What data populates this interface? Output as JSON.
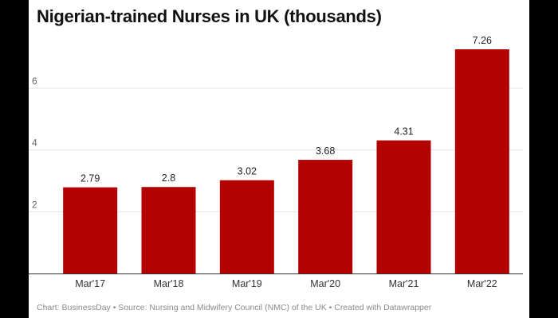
{
  "chart_data": {
    "type": "bar",
    "title": "Nigerian-trained Nurses in UK (thousands)",
    "categories": [
      "Mar'17",
      "Mar'18",
      "Mar'19",
      "Mar'20",
      "Mar'21",
      "Mar'22"
    ],
    "values": [
      2.79,
      2.8,
      3.02,
      3.68,
      4.31,
      7.26
    ],
    "value_labels": [
      "2.79",
      "2.8",
      "3.02",
      "3.68",
      "4.31",
      "7.26"
    ],
    "yticks": [
      2,
      4,
      6
    ],
    "ylim": [
      0,
      7.26
    ],
    "grid": true,
    "bar_color": "#b30000",
    "footer": "Chart: BusinessDay • Source: Nursing and Midwifery Council (NMC) of the UK • Created with Datawrapper"
  }
}
